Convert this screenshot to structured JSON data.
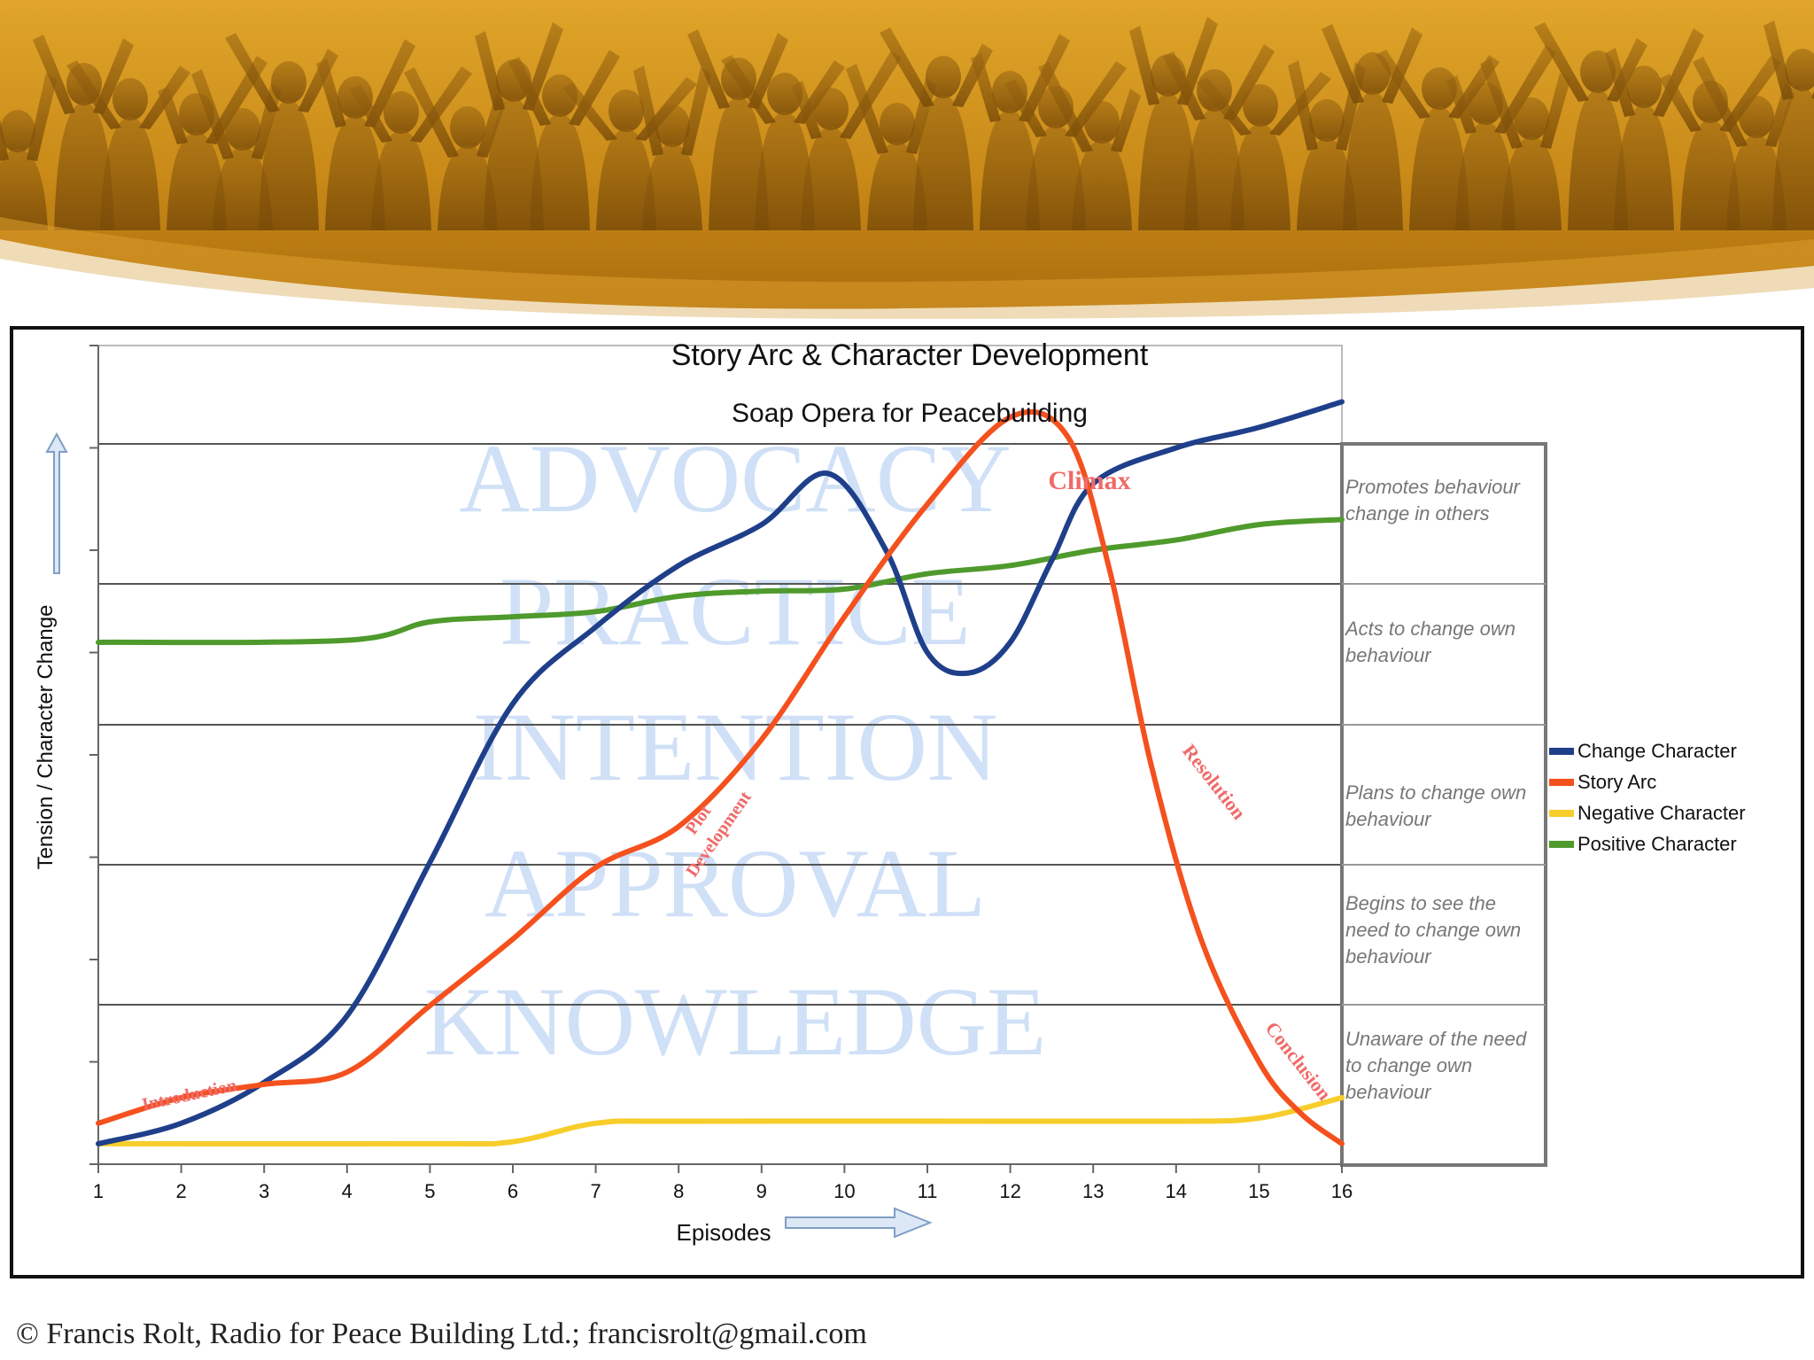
{
  "footer": {
    "text": "© Francis Rolt, Radio for Peace Building Ltd.; francisrolt@gmail.com"
  },
  "chart_data": {
    "type": "line",
    "title": "Story Arc & Character Development",
    "subtitle": "Soap Opera for Peacebuilding",
    "xlabel": "Episodes",
    "ylabel": "Tension / Character Change",
    "x": [
      1,
      2,
      3,
      4,
      5,
      6,
      7,
      8,
      9,
      10,
      11,
      12,
      13,
      14,
      15,
      16
    ],
    "xlim": [
      1,
      16
    ],
    "ylim": [
      0,
      8
    ],
    "grid": true,
    "legend_position": "right",
    "series": [
      {
        "name": "Change Character",
        "color": "#1f3f8a",
        "points": [
          [
            1,
            0.2
          ],
          [
            2,
            0.4
          ],
          [
            3,
            0.8
          ],
          [
            4,
            1.45
          ],
          [
            5,
            2.95
          ],
          [
            6,
            4.5
          ],
          [
            7,
            5.25
          ],
          [
            8,
            5.85
          ],
          [
            9,
            6.25
          ],
          [
            9.8,
            6.75
          ],
          [
            10.5,
            6.0
          ],
          [
            11,
            5.0
          ],
          [
            11.5,
            4.8
          ],
          [
            12,
            5.1
          ],
          [
            12.5,
            5.9
          ],
          [
            13,
            6.65
          ],
          [
            14,
            7.0
          ],
          [
            15,
            7.2
          ],
          [
            16,
            7.45
          ]
        ]
      },
      {
        "name": "Story Arc",
        "color": "#f4511e",
        "points": [
          [
            1,
            0.4
          ],
          [
            2,
            0.65
          ],
          [
            3,
            0.78
          ],
          [
            4,
            0.9
          ],
          [
            5,
            1.55
          ],
          [
            6,
            2.2
          ],
          [
            7,
            2.9
          ],
          [
            8,
            3.3
          ],
          [
            9,
            4.15
          ],
          [
            10,
            5.35
          ],
          [
            11,
            6.45
          ],
          [
            12,
            7.3
          ],
          [
            12.7,
            7.1
          ],
          [
            13.2,
            5.8
          ],
          [
            13.7,
            3.9
          ],
          [
            14.3,
            2.2
          ],
          [
            15,
            1.0
          ],
          [
            15.5,
            0.5
          ],
          [
            16,
            0.2
          ]
        ]
      },
      {
        "name": "Negative Character",
        "color": "#f7cd2b",
        "points": [
          [
            1,
            0.2
          ],
          [
            5,
            0.2
          ],
          [
            6,
            0.22
          ],
          [
            7,
            0.4
          ],
          [
            8,
            0.42
          ],
          [
            12,
            0.42
          ],
          [
            14,
            0.42
          ],
          [
            15,
            0.45
          ],
          [
            16,
            0.65
          ]
        ]
      },
      {
        "name": "Positive Character",
        "color": "#4f9a2c",
        "points": [
          [
            1,
            5.1
          ],
          [
            4,
            5.12
          ],
          [
            5,
            5.3
          ],
          [
            6,
            5.35
          ],
          [
            7,
            5.4
          ],
          [
            8,
            5.55
          ],
          [
            9,
            5.6
          ],
          [
            10,
            5.62
          ],
          [
            11,
            5.77
          ],
          [
            12,
            5.85
          ],
          [
            13,
            6.0
          ],
          [
            14,
            6.1
          ],
          [
            15,
            6.25
          ],
          [
            16,
            6.3
          ]
        ]
      }
    ],
    "stages": [
      "Promotes behaviour change in others",
      "Acts to change own behaviour",
      "Plans to change own behaviour",
      "Begins to see the need to change own behaviour",
      "Unaware of the need to change own behaviour"
    ],
    "background_words": [
      "ADVOCACY",
      "PRACTICE",
      "INTENTION",
      "APPROVAL",
      "KNOWLEDGE"
    ],
    "annotations": [
      "Climax",
      "Introduction",
      "Plot Development",
      "Resolution",
      "Conclusion"
    ]
  }
}
